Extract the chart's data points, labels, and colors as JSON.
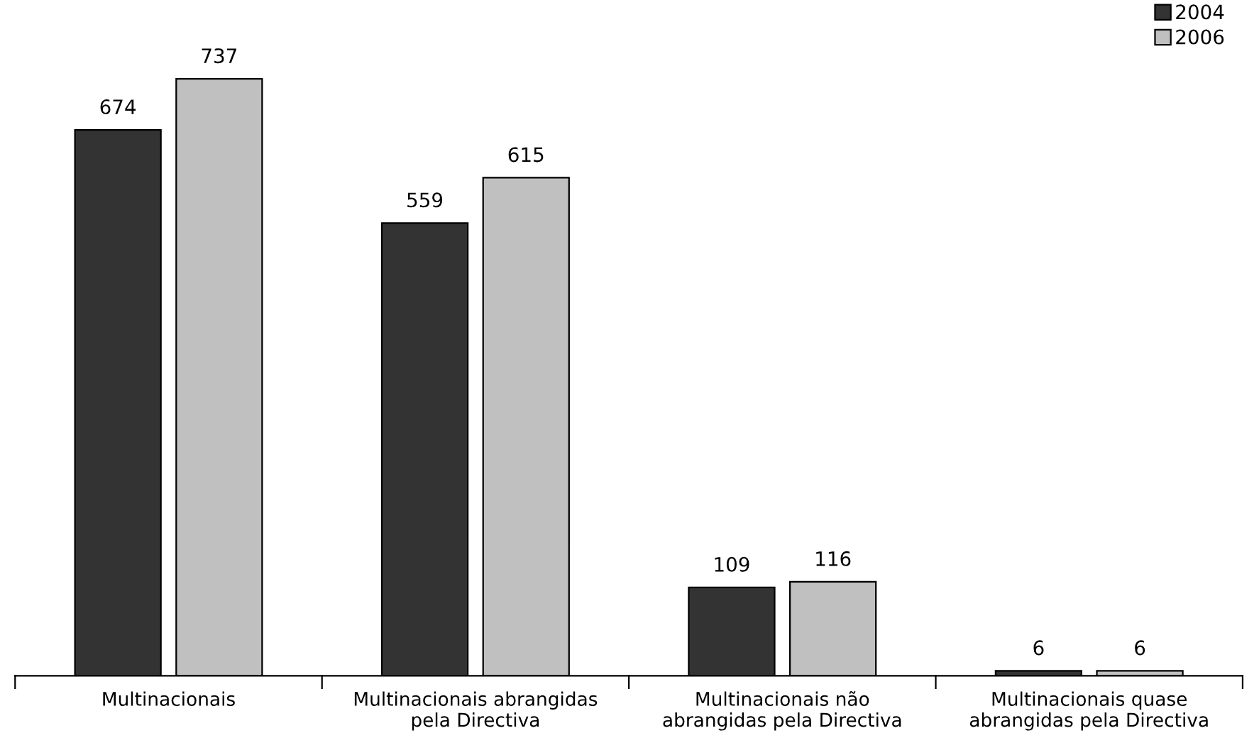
{
  "chart_data": {
    "type": "bar",
    "categories": [
      "Multinacionais",
      "Multinacionais abrangidas pela Directiva",
      "Multinacionais não abrangidas pela Directiva",
      "Multinacionais quase abrangidas pela Directiva"
    ],
    "series": [
      {
        "name": "2004",
        "color": "#333333",
        "values": [
          674,
          559,
          109,
          6
        ]
      },
      {
        "name": "2006",
        "color": "#c0c0c0",
        "values": [
          737,
          615,
          116,
          6
        ]
      }
    ],
    "data_labels": true,
    "legend": "top right",
    "grid": false
  }
}
